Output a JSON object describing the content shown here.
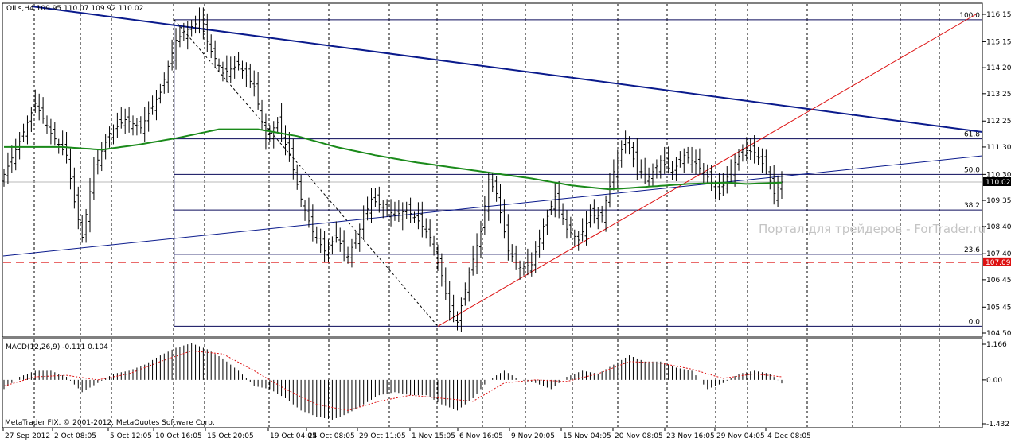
{
  "chart_data": {
    "type": "candlestick",
    "symbol_header": "OILs,H4  109.95 110.07 109.92 110.02",
    "y_ticks": [
      "116.15",
      "115.15",
      "114.20",
      "113.25",
      "112.25",
      "111.30",
      "110.30",
      "109.35",
      "108.40",
      "107.40",
      "106.45",
      "105.45",
      "104.50"
    ],
    "y_range": [
      104.5,
      116.15
    ],
    "x_ticks": [
      "27 Sep 2012",
      "2 Oct 08:05",
      "5 Oct 12:05",
      "10 Oct 16:05",
      "15 Oct 20:05",
      "19 Oct 04:05",
      "24 Oct 08:05",
      "29 Oct 11:05",
      "1 Nov 15:05",
      "6 Nov 16:05",
      "9 Nov 20:05",
      "15 Nov 04:05",
      "20 Nov 08:05",
      "23 Nov 16:05",
      "29 Nov 04:05",
      "4 Dec 08:05"
    ],
    "current_price": "110.02",
    "alert_price": "107.09",
    "fib_levels": [
      {
        "label": "100.0",
        "value": 115.95
      },
      {
        "label": "61.8",
        "value": 111.6
      },
      {
        "label": "50.0",
        "value": 110.3
      },
      {
        "label": "38.2",
        "value": 109.0
      },
      {
        "label": "23.6",
        "value": 107.38
      },
      {
        "label": "0.0",
        "value": 104.75
      }
    ],
    "price_path": [
      [
        0,
        110.3
      ],
      [
        4,
        111.5
      ],
      [
        8,
        112.9
      ],
      [
        12,
        111.8
      ],
      [
        16,
        111.0
      ],
      [
        18,
        109.3
      ],
      [
        20,
        108.0
      ],
      [
        23,
        110.5
      ],
      [
        27,
        111.8
      ],
      [
        31,
        112.3
      ],
      [
        35,
        112.0
      ],
      [
        40,
        113.3
      ],
      [
        44,
        115.2
      ],
      [
        47,
        115.6
      ],
      [
        50,
        115.9
      ],
      [
        53,
        114.8
      ],
      [
        56,
        114.0
      ],
      [
        60,
        114.3
      ],
      [
        64,
        113.5
      ],
      [
        67,
        111.6
      ],
      [
        70,
        112.2
      ],
      [
        73,
        111.0
      ],
      [
        76,
        109.4
      ],
      [
        79,
        108.2
      ],
      [
        82,
        107.5
      ],
      [
        85,
        108.0
      ],
      [
        88,
        107.3
      ],
      [
        91,
        108.3
      ],
      [
        94,
        109.4
      ],
      [
        97,
        109.1
      ],
      [
        100,
        108.8
      ],
      [
        103,
        109.0
      ],
      [
        106,
        108.6
      ],
      [
        109,
        108.0
      ],
      [
        112,
        106.6
      ],
      [
        114,
        105.3
      ],
      [
        116,
        104.9
      ],
      [
        119,
        106.7
      ],
      [
        122,
        108.2
      ],
      [
        124,
        110.1
      ],
      [
        126,
        109.6
      ],
      [
        129,
        107.5
      ],
      [
        132,
        106.9
      ],
      [
        135,
        107.0
      ],
      [
        138,
        108.4
      ],
      [
        141,
        109.5
      ],
      [
        144,
        108.3
      ],
      [
        147,
        107.9
      ],
      [
        150,
        108.8
      ],
      [
        153,
        108.8
      ],
      [
        156,
        110.4
      ],
      [
        159,
        111.6
      ],
      [
        162,
        110.5
      ],
      [
        165,
        110.2
      ],
      [
        168,
        110.8
      ],
      [
        171,
        110.4
      ],
      [
        174,
        111.0
      ],
      [
        177,
        110.7
      ],
      [
        180,
        110.2
      ],
      [
        183,
        109.6
      ],
      [
        186,
        110.5
      ],
      [
        189,
        111.2
      ],
      [
        192,
        111.1
      ],
      [
        195,
        110.5
      ],
      [
        197,
        109.6
      ],
      [
        199,
        110.02
      ]
    ],
    "ma_path": [
      [
        0,
        111.3
      ],
      [
        15,
        111.3
      ],
      [
        25,
        111.2
      ],
      [
        35,
        111.4
      ],
      [
        45,
        111.65
      ],
      [
        55,
        111.95
      ],
      [
        65,
        111.95
      ],
      [
        75,
        111.7
      ],
      [
        85,
        111.3
      ],
      [
        95,
        111.0
      ],
      [
        105,
        110.75
      ],
      [
        115,
        110.55
      ],
      [
        125,
        110.35
      ],
      [
        135,
        110.15
      ],
      [
        145,
        109.9
      ],
      [
        155,
        109.75
      ],
      [
        165,
        109.85
      ],
      [
        175,
        109.95
      ],
      [
        185,
        110.0
      ],
      [
        190,
        109.95
      ],
      [
        199,
        110.0
      ]
    ],
    "macd": {
      "label": "MACD(12,26,9) -0.111 0.104",
      "ticks": [
        "1.166",
        "0.00",
        "-1.432"
      ],
      "range": [
        -1.432,
        1.166
      ],
      "histogram": [
        [
          0,
          -0.3
        ],
        [
          4,
          0.1
        ],
        [
          8,
          0.3
        ],
        [
          12,
          0.3
        ],
        [
          16,
          0.1
        ],
        [
          20,
          -0.4
        ],
        [
          24,
          -0.1
        ],
        [
          28,
          0.2
        ],
        [
          32,
          0.3
        ],
        [
          36,
          0.5
        ],
        [
          40,
          0.8
        ],
        [
          44,
          1.05
        ],
        [
          48,
          1.2
        ],
        [
          52,
          1.0
        ],
        [
          56,
          0.7
        ],
        [
          60,
          0.3
        ],
        [
          64,
          -0.2
        ],
        [
          68,
          -0.3
        ],
        [
          72,
          -0.6
        ],
        [
          76,
          -1.0
        ],
        [
          80,
          -1.2
        ],
        [
          84,
          -1.3
        ],
        [
          88,
          -1.1
        ],
        [
          92,
          -0.8
        ],
        [
          96,
          -0.5
        ],
        [
          100,
          -0.4
        ],
        [
          104,
          -0.5
        ],
        [
          108,
          -0.5
        ],
        [
          112,
          -0.8
        ],
        [
          116,
          -1.0
        ],
        [
          120,
          -0.6
        ],
        [
          124,
          0.0
        ],
        [
          128,
          0.3
        ],
        [
          132,
          0.0
        ],
        [
          136,
          -0.1
        ],
        [
          140,
          -0.3
        ],
        [
          144,
          0.1
        ],
        [
          148,
          0.3
        ],
        [
          152,
          0.2
        ],
        [
          156,
          0.5
        ],
        [
          160,
          0.8
        ],
        [
          164,
          0.6
        ],
        [
          168,
          0.6
        ],
        [
          172,
          0.4
        ],
        [
          176,
          0.3
        ],
        [
          180,
          -0.3
        ],
        [
          184,
          -0.1
        ],
        [
          188,
          0.2
        ],
        [
          192,
          0.3
        ],
        [
          196,
          0.2
        ],
        [
          199,
          -0.11
        ]
      ],
      "signal": [
        [
          0,
          -0.2
        ],
        [
          8,
          0.1
        ],
        [
          16,
          0.15
        ],
        [
          24,
          0.0
        ],
        [
          32,
          0.2
        ],
        [
          40,
          0.6
        ],
        [
          48,
          0.95
        ],
        [
          56,
          0.85
        ],
        [
          64,
          0.3
        ],
        [
          72,
          -0.3
        ],
        [
          80,
          -0.8
        ],
        [
          88,
          -1.0
        ],
        [
          96,
          -0.7
        ],
        [
          104,
          -0.5
        ],
        [
          112,
          -0.6
        ],
        [
          120,
          -0.7
        ],
        [
          128,
          -0.1
        ],
        [
          136,
          0.0
        ],
        [
          144,
          -0.05
        ],
        [
          152,
          0.2
        ],
        [
          160,
          0.6
        ],
        [
          168,
          0.55
        ],
        [
          176,
          0.35
        ],
        [
          184,
          0.05
        ],
        [
          192,
          0.2
        ],
        [
          199,
          0.1
        ]
      ]
    },
    "watermark": "Портал для трейдеров - ForTrader.ru",
    "copyright": "MetaTrader FIX, © 2001-2012, MetaQuotes Software Corp."
  },
  "colors": {
    "candle": "#000000",
    "ma": "#1a8a1a",
    "trend_blue": "#0a1a8c",
    "trend_red": "#dd1111",
    "fib": "#0a0a5a",
    "grid": "#000000",
    "alert": "#dd1111",
    "price_tag": "#000000"
  }
}
